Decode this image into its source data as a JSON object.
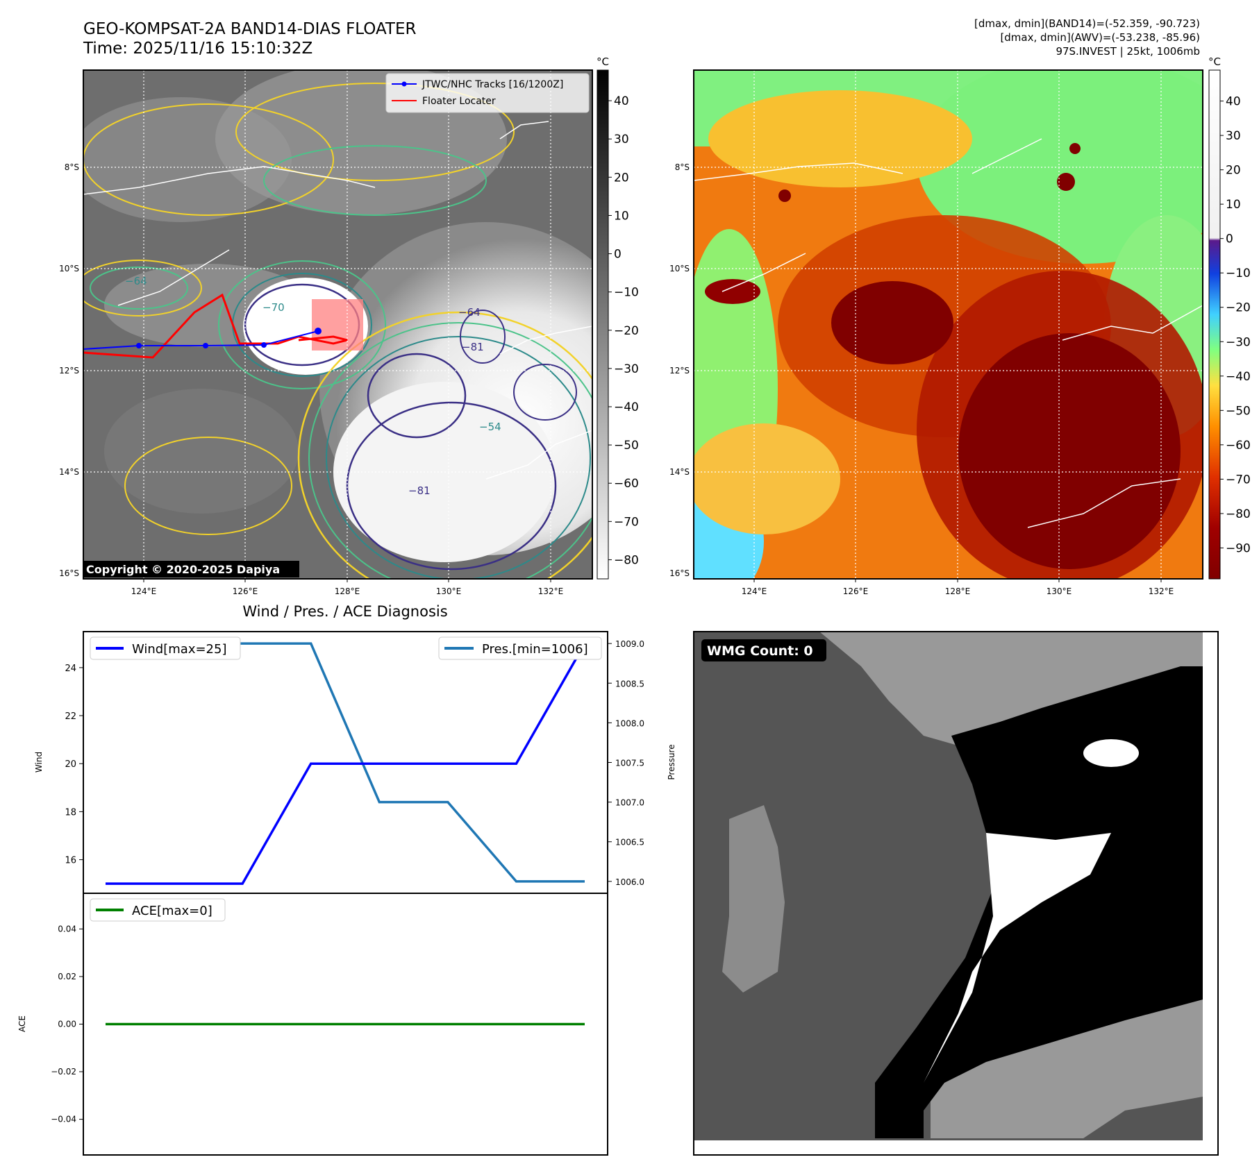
{
  "header": {
    "title_line1": "GEO-KOMPSAT-2A BAND14-DIAS FLOATER",
    "title_line2": "Time: 2025/11/16 15:10:32Z",
    "stats_line1": "[dmax, dmin](BAND14)=(-52.359, -90.723)",
    "stats_line2": "[dmax, dmin](AWV)=(-53.238, -85.96)",
    "stats_line3": "97S.INVEST | 25kt, 1006mb"
  },
  "map_common": {
    "lon_ticks": [
      "124°E",
      "126°E",
      "128°E",
      "130°E",
      "132°E"
    ],
    "lat_ticks": [
      "8°S",
      "10°S",
      "12°S",
      "14°S",
      "16°S"
    ],
    "colorbar_unit": "°C"
  },
  "ir_panel": {
    "legend": [
      "JTWC/NHC Tracks [16/1200Z]",
      "Floater Locater"
    ],
    "legend_colors": [
      "#0000ff",
      "#ff0000"
    ],
    "colorbar_ticks": [
      "40",
      "30",
      "20",
      "10",
      "0",
      "−10",
      "−20",
      "−30",
      "−40",
      "−50",
      "−60",
      "−70",
      "−80"
    ],
    "contour_labels": [
      "−64",
      "−70",
      "−64",
      "−81",
      "−81",
      "−54"
    ],
    "copyright": "Copyright © 2020-2025 Dapiya"
  },
  "awv_panel": {
    "colorbar_ticks": [
      "40",
      "30",
      "20",
      "10",
      "0",
      "−10",
      "−20",
      "−30",
      "−40",
      "−50",
      "−60",
      "−70",
      "−80",
      "−90"
    ]
  },
  "wmg_panel": {
    "label": "WMG Count: 0"
  },
  "chart_data": [
    {
      "type": "line",
      "title": "Wind / Pres. / ACE Diagnosis",
      "x": [
        0,
        1,
        2,
        3,
        4,
        5,
        6,
        7
      ],
      "series": [
        {
          "name": "Wind[max=25]",
          "axis": "left",
          "color": "#0000ff",
          "values": [
            15,
            15,
            15,
            20,
            20,
            20,
            20,
            25
          ]
        },
        {
          "name": "Pres.[min=1006]",
          "axis": "right",
          "color": "#1f77b4",
          "values": [
            1009,
            1009,
            1009,
            1009,
            1007,
            1007,
            1006,
            1006
          ]
        }
      ],
      "ylabel": "Wind",
      "ylabel_right": "Pressure",
      "ylim": [
        14.6,
        25.5
      ],
      "ylim_right": [
        1005.85,
        1009.15
      ],
      "yticks": [
        16,
        18,
        20,
        22,
        24
      ],
      "yticks_right": [
        "1006.0",
        "1006.5",
        "1007.0",
        "1007.5",
        "1008.0",
        "1008.5",
        "1009.0"
      ]
    },
    {
      "type": "line",
      "x": [
        0,
        1,
        2,
        3,
        4,
        5,
        6,
        7
      ],
      "series": [
        {
          "name": "ACE[max=0]",
          "color": "#008000",
          "values": [
            0,
            0,
            0,
            0,
            0,
            0,
            0,
            0
          ]
        }
      ],
      "ylabel": "ACE",
      "ylim": [
        -0.055,
        0.055
      ],
      "yticks": [
        "0.04",
        "0.02",
        "0.00",
        "−0.02",
        "−0.04"
      ]
    }
  ]
}
